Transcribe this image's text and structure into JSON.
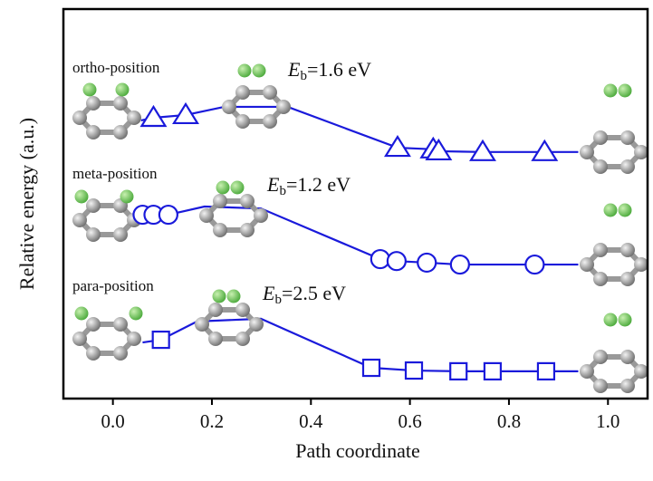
{
  "chart_data": {
    "type": "line",
    "x_label": "Path coordinate",
    "y_label": "Relative energy (a.u.)",
    "xlim": [
      -0.1,
      1.08
    ],
    "ylim": [
      0,
      100
    ],
    "xticks": [
      {
        "value": 0,
        "label": "0.0"
      },
      0.2,
      0.4,
      0.6,
      0.8,
      {
        "value": 1,
        "label": "1.0"
      }
    ],
    "annotations": [
      "ortho-position",
      "meta-position",
      "para-position"
    ],
    "energy_labels": [
      {
        "symbol": "E",
        "subscript": "b",
        "text": "=1.6 eV"
      },
      {
        "symbol": "E",
        "subscript": "b",
        "text": "=1.2 eV"
      },
      {
        "symbol": "E",
        "subscript": "b",
        "text": "=2.5 eV"
      }
    ],
    "series": [
      {
        "color": "#1a1adb",
        "marker": "none",
        "line": true,
        "x": [
          0.057,
          0.082,
          0.147,
          0.225,
          0.353,
          0.575,
          0.647,
          0.658,
          0.747,
          0.872,
          0.94
        ],
        "values": [
          71.4,
          72.1,
          72.8,
          74.9,
          74.9,
          64.4,
          64.0,
          63.5,
          63.3,
          63.3,
          63.3
        ]
      },
      {
        "color": "#1a1adb",
        "marker": "triangle",
        "line": false,
        "x": [
          0.082,
          0.147,
          0.575,
          0.647,
          0.658,
          0.747,
          0.872
        ],
        "values": [
          72.1,
          72.8,
          64.4,
          64.0,
          63.5,
          63.3,
          63.3
        ]
      },
      {
        "color": "#1a1adb",
        "marker": "none",
        "line": true,
        "x": [
          0.042,
          0.06,
          0.082,
          0.112,
          0.185,
          0.299,
          0.54,
          0.573,
          0.634,
          0.701,
          0.852,
          0.94
        ],
        "values": [
          47.2,
          47.2,
          47.2,
          47.2,
          49.3,
          48.8,
          35.8,
          35.3,
          34.9,
          34.4,
          34.4,
          34.4
        ]
      },
      {
        "color": "#1a1adb",
        "marker": "circle",
        "line": false,
        "x": [
          0.06,
          0.082,
          0.112,
          0.54,
          0.573,
          0.634,
          0.701,
          0.852
        ],
        "values": [
          47.2,
          47.2,
          47.2,
          35.8,
          35.3,
          34.9,
          34.4,
          34.4
        ]
      },
      {
        "color": "#1a1adb",
        "marker": "none",
        "line": true,
        "x": [
          0.06,
          0.097,
          0.17,
          0.299,
          0.522,
          0.608,
          0.698,
          0.767,
          0.875,
          0.94
        ],
        "values": [
          14.4,
          15.1,
          19.8,
          20.5,
          7.9,
          7.2,
          7.0,
          7.0,
          7.0,
          7.0
        ]
      },
      {
        "color": "#1a1adb",
        "marker": "square",
        "line": false,
        "x": [
          0.097,
          0.522,
          0.608,
          0.698,
          0.767,
          0.875
        ],
        "values": [
          15.1,
          7.9,
          7.2,
          7.0,
          7.0,
          7.0
        ]
      }
    ]
  }
}
